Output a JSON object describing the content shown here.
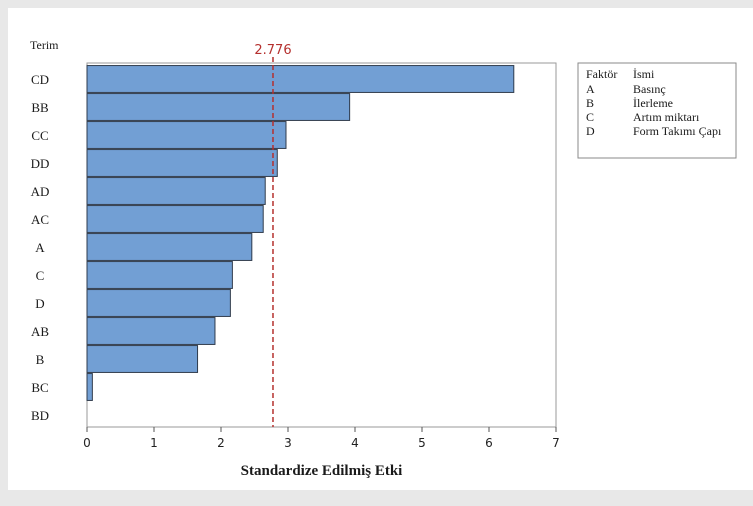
{
  "chart_data": {
    "type": "bar",
    "orientation": "horizontal",
    "title": "",
    "ylabel": "Terim",
    "xlabel": "Standardize Edilmiş Etki",
    "categories": [
      "CD",
      "BB",
      "CC",
      "DD",
      "AD",
      "AC",
      "A",
      "C",
      "D",
      "AB",
      "B",
      "BC",
      "BD"
    ],
    "values": [
      6.37,
      3.92,
      2.97,
      2.84,
      2.66,
      2.63,
      2.46,
      2.17,
      2.14,
      1.91,
      1.65,
      0.08,
      0.0
    ],
    "xlim": [
      0,
      7
    ],
    "xticks": [
      0,
      1,
      2,
      3,
      4,
      5,
      6,
      7
    ],
    "reference_line": {
      "value": 2.776,
      "label": "2.776",
      "color": "#b5302e"
    },
    "bar_color": "#729fd4",
    "bar_edge_color": "#2f3b4c",
    "grid": false,
    "legend": {
      "placement": "right",
      "header": [
        "Faktör",
        "İsmi"
      ],
      "rows": [
        [
          "A",
          "Basınç"
        ],
        [
          "B",
          "İlerleme"
        ],
        [
          "C",
          "Artım miktarı"
        ],
        [
          "D",
          "Form Takımı Çapı"
        ]
      ]
    }
  }
}
